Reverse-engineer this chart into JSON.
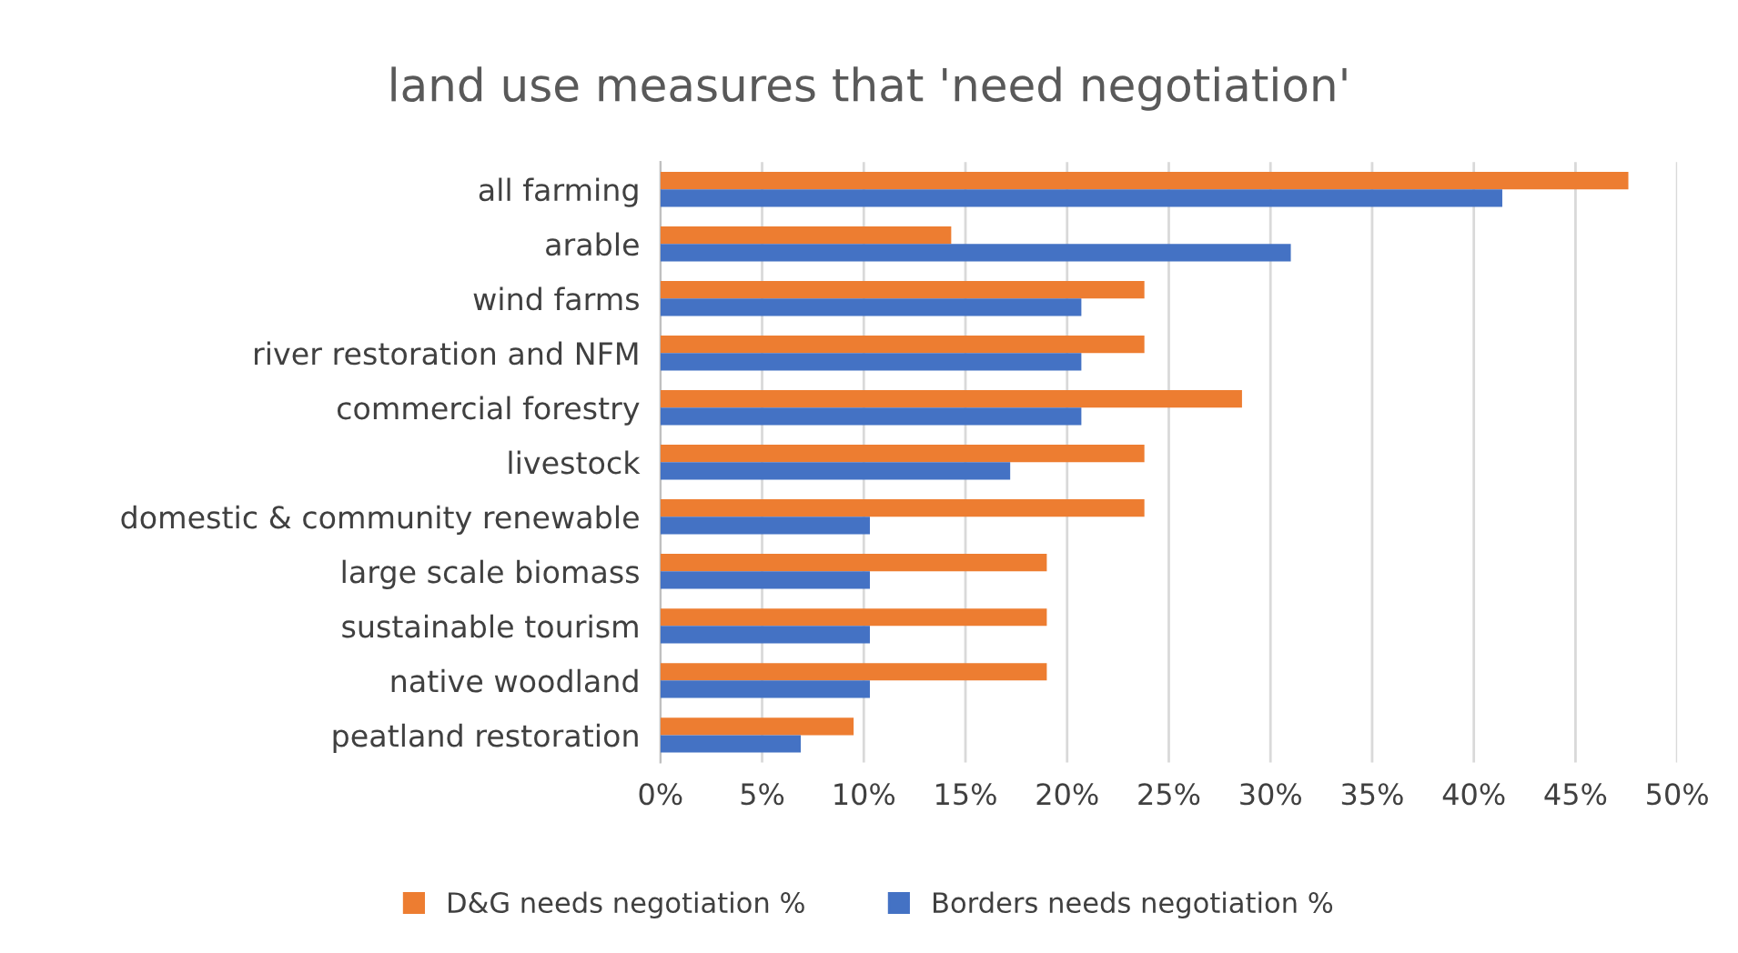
{
  "chart_data": {
    "type": "bar",
    "orientation": "horizontal",
    "title": "land use measures that 'need negotiation'",
    "categories": [
      "all farming",
      "arable",
      "wind farms",
      "river restoration and NFM",
      "commercial forestry",
      "livestock",
      "domestic & community renewable",
      "large scale biomass",
      "sustainable tourism",
      "native woodland",
      "peatland restoration"
    ],
    "series": [
      {
        "name": "D&G needs negotiation %",
        "color": "#ed7d31",
        "values": [
          47.6,
          14.3,
          23.8,
          23.8,
          28.6,
          23.8,
          23.8,
          19.0,
          19.0,
          19.0,
          9.5
        ]
      },
      {
        "name": "Borders needs negotiation %",
        "color": "#4472c4",
        "values": [
          41.4,
          31.0,
          20.7,
          20.7,
          20.7,
          17.2,
          10.3,
          10.3,
          10.3,
          10.3,
          6.9
        ]
      }
    ],
    "xlim": [
      0,
      50
    ],
    "xticks": [
      {
        "value": 0,
        "label": "0%"
      },
      {
        "value": 5,
        "label": "5%"
      },
      {
        "value": 10,
        "label": "10%"
      },
      {
        "value": 15,
        "label": "15%"
      },
      {
        "value": 20,
        "label": "20%"
      },
      {
        "value": 25,
        "label": "25%"
      },
      {
        "value": 30,
        "label": "30%"
      },
      {
        "value": 35,
        "label": "35%"
      },
      {
        "value": 40,
        "label": "40%"
      },
      {
        "value": 45,
        "label": "45%"
      },
      {
        "value": 50,
        "label": "50%"
      }
    ],
    "grid": "x",
    "legend": "bottom"
  }
}
